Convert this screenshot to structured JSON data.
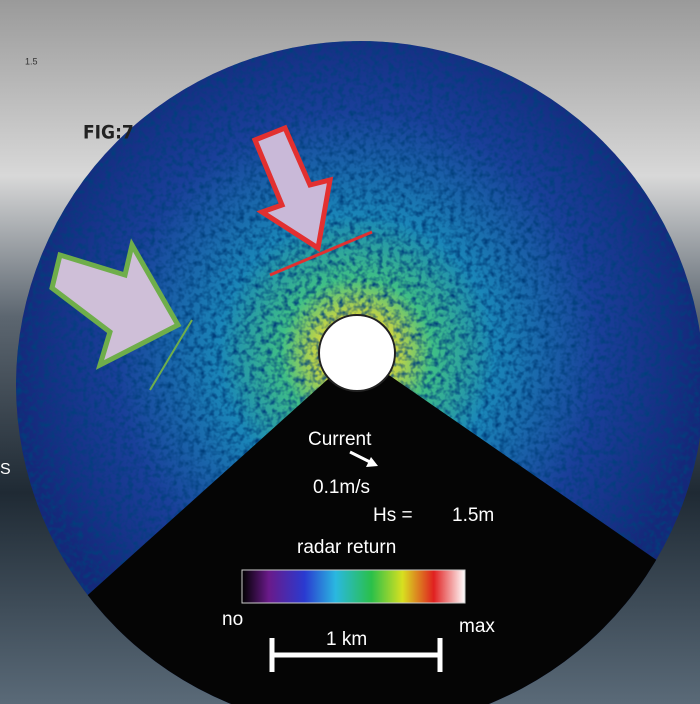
{
  "figure": {
    "label": "FIG:7",
    "corner_tick": "1.5",
    "edge_text": "S"
  },
  "radar": {
    "current_label": "Current",
    "current_speed": "0.1m/s",
    "hs_label": "Hs =",
    "hs_value": "1.5m",
    "legend_title": "radar return",
    "legend_min": "no",
    "legend_max": "max",
    "scale_label": "1 km"
  }
}
